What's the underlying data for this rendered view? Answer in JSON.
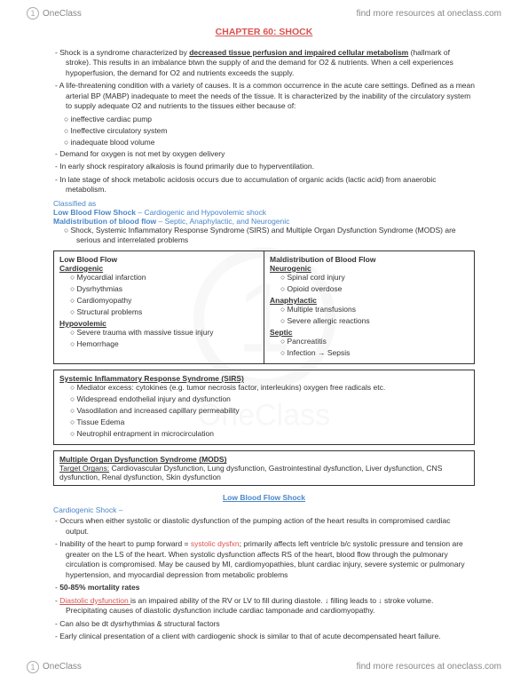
{
  "brand": "OneClass",
  "header_link": "find more resources at oneclass.com",
  "footer_link": "find more resources at oneclass.com",
  "title": "CHAPTER 60: SHOCK",
  "intro": [
    {
      "pre": "Shock is a syndrome characterized by ",
      "bold": "decreased tissue perfusion and impaired cellular metabolism",
      "post": " (hallmark of stroke). This results in an imbalance btwn the supply of and the demand for O2 & nutrients. When a cell experiences hypoperfusion, the demand for O2 and nutrients exceeds the supply."
    },
    {
      "text": "A life-threatening condition with a variety of causes. It is a common occurrence in the acute care settings. Defined as a mean arterial BP (MABP) inadequate to meet the needs of the tissue. It is characterized by the inability of the circulatory system to supply adequate O2 and nutrients to the tissues either because of:"
    }
  ],
  "intro_sub": [
    "ineffective cardiac pump",
    "Ineffective circulatory system",
    "inadequate blood volume"
  ],
  "intro2": [
    "Demand for oxygen is not met by oxygen delivery",
    "In early shock respiratory alkalosis is found primarily due to hyperventilation.",
    "In late stage of shock metabolic acidosis occurs due to accumulation of organic acids (lactic acid) from anaerobic metabolism."
  ],
  "classified_label": "Classified as",
  "classified": [
    {
      "head": "Low Blood Flow Shock",
      "tail": " – Cardiogenic and Hypovolemic shock"
    },
    {
      "head": "Maldistribution of blood flow",
      "tail": " – Septic, Anaphylactic, and Neurogenic"
    }
  ],
  "classified_sub": "Shock, Systemic Inflammatory Response Syndrome (SIRS) and Multiple Organ Dysfunction Syndrome (MODS) are serious and interrelated problems",
  "table1": {
    "left": {
      "header": "Low Blood Flow",
      "groups": [
        {
          "name": "Cardiogenic",
          "items": [
            "Myocardial infarction",
            "Dysrhythmias",
            "Cardiomyopathy",
            "Structural problems"
          ]
        },
        {
          "name": "Hypovolemic",
          "items": [
            "Severe trauma with massive tissue injury",
            "Hemorrhage"
          ]
        }
      ]
    },
    "right": {
      "header": "Maldistribution of Blood Flow",
      "groups": [
        {
          "name": "Neurogenic",
          "items": [
            "Spinal cord injury",
            "Opioid overdose"
          ]
        },
        {
          "name": "Anaphylactic",
          "items": [
            "Multiple transfusions",
            "Severe allergic reactions"
          ]
        },
        {
          "name": "Septic",
          "items": [
            "Pancreatitis",
            "Infection → Sepsis"
          ]
        }
      ]
    }
  },
  "sirs": {
    "header": "Systemic Inflammatory Response Syndrome (SIRS)",
    "items": [
      "Mediator excess: cytokines (e.g. tumor necrosis factor, interleukins) oxygen free radicals etc.",
      "Widespread endothelial injury and dysfunction",
      "Vasodilation and increased capillary permeability",
      "Tissue Edema",
      "Neutrophil entrapment in microcirculation"
    ]
  },
  "mods": {
    "header": "Multiple Organ Dysfunction Syndrome (MODS)",
    "label": "Target Organs:",
    "text": " Cardiovascular Dysfunction, Lung dysfunction, Gastrointestinal dysfunction, Liver dysfunction, CNS dysfunction, Renal dysfunction, Skin dysfunction"
  },
  "section2_title": "Low Blood Flow Shock",
  "cardio_head": "Cardiogenic Shock –",
  "cardio": [
    "Occurs when either systolic or diastolic dysfunction of the pumping action of the heart results in compromised cardiac output.",
    {
      "pre": "Inability of the heart to pump forward = ",
      "red": "systolic dysfxn",
      "post": "; primarily affects left ventricle b/c systolic pressure and tension are greater on the LS of the heart. When systolic dysfunction affects RS of the heart, blood flow through the pulmonary circulation is compromised. May be caused by MI, cardiomyopathies, blunt cardiac injury, severe systemic or pulmonary hypertension, and myocardial depression from metabolic problems"
    },
    {
      "bold": "50-85% mortality rates"
    },
    {
      "red": "Diastolic dysfunction ",
      "post": "is an impaired ability of the RV or LV to fill during diastole. ↓ filling leads to ↓ stroke volume. Precipitating causes of diastolic dysfunction include cardiac tamponade and cardiomyopathy."
    },
    "Can also be dt dysrhythmias & structural factors",
    "Early clinical presentation of a client with cardiogenic shock is similar to that of acute decompensated heart failure."
  ],
  "colors": {
    "accent_red": "#d9534f",
    "accent_blue": "#4a86c7",
    "text": "#333333",
    "muted": "#888888"
  }
}
